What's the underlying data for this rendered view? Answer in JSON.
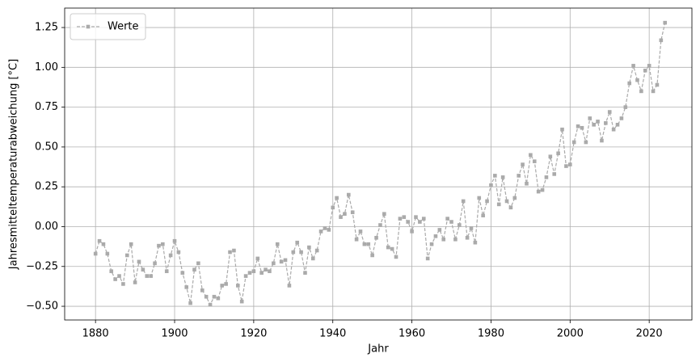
{
  "chart_data": {
    "type": "line",
    "xlabel": "Jahr",
    "ylabel": "Jahresmitteltemperaturabweichung [°C]",
    "x": [
      1880,
      1881,
      1882,
      1883,
      1884,
      1885,
      1886,
      1887,
      1888,
      1889,
      1890,
      1891,
      1892,
      1893,
      1894,
      1895,
      1896,
      1897,
      1898,
      1899,
      1900,
      1901,
      1902,
      1903,
      1904,
      1905,
      1906,
      1907,
      1908,
      1909,
      1910,
      1911,
      1912,
      1913,
      1914,
      1915,
      1916,
      1917,
      1918,
      1919,
      1920,
      1921,
      1922,
      1923,
      1924,
      1925,
      1926,
      1927,
      1928,
      1929,
      1930,
      1931,
      1932,
      1933,
      1934,
      1935,
      1936,
      1937,
      1938,
      1939,
      1940,
      1941,
      1942,
      1943,
      1944,
      1945,
      1946,
      1947,
      1948,
      1949,
      1950,
      1951,
      1952,
      1953,
      1954,
      1955,
      1956,
      1957,
      1958,
      1959,
      1960,
      1961,
      1962,
      1963,
      1964,
      1965,
      1966,
      1967,
      1968,
      1969,
      1970,
      1971,
      1972,
      1973,
      1974,
      1975,
      1976,
      1977,
      1978,
      1979,
      1980,
      1981,
      1982,
      1983,
      1984,
      1985,
      1986,
      1987,
      1988,
      1989,
      1990,
      1991,
      1992,
      1993,
      1994,
      1995,
      1996,
      1997,
      1998,
      1999,
      2000,
      2001,
      2002,
      2003,
      2004,
      2005,
      2006,
      2007,
      2008,
      2009,
      2010,
      2011,
      2012,
      2013,
      2014,
      2015,
      2016,
      2017,
      2018,
      2019,
      2020,
      2021,
      2022,
      2023,
      2024
    ],
    "series": [
      {
        "name": "Werte",
        "color": "#aaaaaa",
        "values": [
          -0.17,
          -0.09,
          -0.11,
          -0.17,
          -0.28,
          -0.33,
          -0.31,
          -0.36,
          -0.18,
          -0.11,
          -0.35,
          -0.22,
          -0.27,
          -0.31,
          -0.31,
          -0.23,
          -0.12,
          -0.11,
          -0.28,
          -0.18,
          -0.09,
          -0.16,
          -0.29,
          -0.38,
          -0.48,
          -0.27,
          -0.23,
          -0.4,
          -0.44,
          -0.49,
          -0.44,
          -0.45,
          -0.37,
          -0.36,
          -0.16,
          -0.15,
          -0.37,
          -0.47,
          -0.31,
          -0.29,
          -0.28,
          -0.2,
          -0.29,
          -0.27,
          -0.28,
          -0.23,
          -0.11,
          -0.22,
          -0.21,
          -0.37,
          -0.16,
          -0.1,
          -0.16,
          -0.29,
          -0.13,
          -0.2,
          -0.15,
          -0.03,
          -0.01,
          -0.02,
          0.12,
          0.18,
          0.06,
          0.08,
          0.2,
          0.09,
          -0.08,
          -0.03,
          -0.11,
          -0.11,
          -0.18,
          -0.07,
          0.01,
          0.08,
          -0.13,
          -0.14,
          -0.19,
          0.05,
          0.06,
          0.03,
          -0.03,
          0.06,
          0.03,
          0.05,
          -0.2,
          -0.11,
          -0.06,
          -0.02,
          -0.08,
          0.05,
          0.03,
          -0.08,
          0.01,
          0.16,
          -0.07,
          -0.01,
          -0.1,
          0.18,
          0.07,
          0.16,
          0.26,
          0.32,
          0.14,
          0.31,
          0.16,
          0.12,
          0.18,
          0.32,
          0.39,
          0.27,
          0.45,
          0.41,
          0.22,
          0.23,
          0.31,
          0.44,
          0.33,
          0.46,
          0.61,
          0.38,
          0.39,
          0.53,
          0.63,
          0.62,
          0.53,
          0.68,
          0.64,
          0.66,
          0.54,
          0.65,
          0.72,
          0.61,
          0.64,
          0.68,
          0.75,
          0.9,
          1.01,
          0.92,
          0.85,
          0.98,
          1.01,
          0.85,
          0.89,
          1.17,
          1.28
        ]
      }
    ],
    "xlim": [
      1872.2,
      2030.8
    ],
    "ylim": [
      -0.586,
      1.372
    ],
    "xticks": [
      1880,
      1900,
      1920,
      1940,
      1960,
      1980,
      2000,
      2020
    ],
    "yticks": [
      {
        "value": -0.5,
        "label": "−0.50"
      },
      {
        "value": -0.25,
        "label": "−0.25"
      },
      {
        "value": 0,
        "label": "0.00"
      },
      {
        "value": 0.25,
        "label": "0.25"
      },
      {
        "value": 0.5,
        "label": "0.50"
      },
      {
        "value": 0.75,
        "label": "0.75"
      },
      {
        "value": 1,
        "label": "1.00"
      },
      {
        "value": 1.25,
        "label": "1.25"
      }
    ],
    "grid": true,
    "legend": "upper left"
  }
}
